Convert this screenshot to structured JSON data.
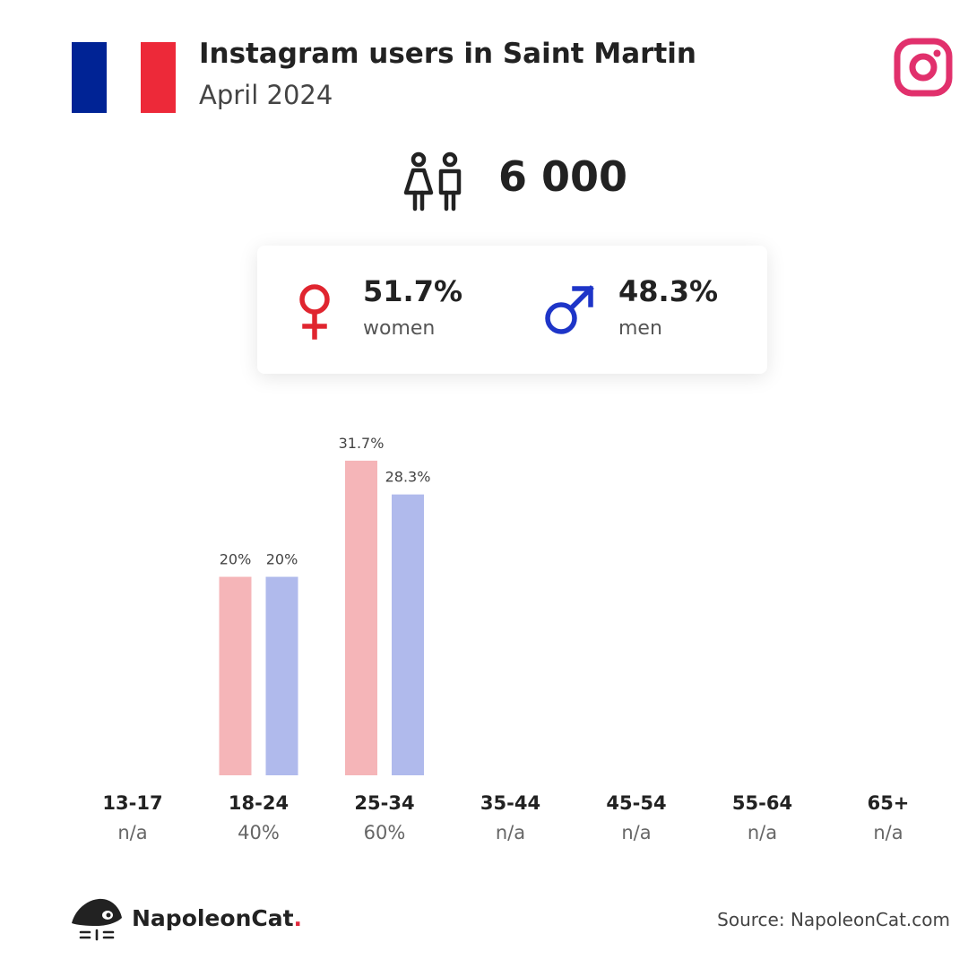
{
  "header": {
    "title": "Instagram users in Saint Martin",
    "subtitle": "April 2024",
    "flag_colors": [
      "#002395",
      "#ffffff",
      "#ed2939"
    ],
    "platform_icon": "instagram-icon",
    "platform_color": "#e1306c"
  },
  "total": {
    "icon": "users-icon",
    "value": "6 000"
  },
  "gender": {
    "women": {
      "icon": "female-symbol-icon",
      "percent": "51.7%",
      "label": "women",
      "color": "#e0252f"
    },
    "men": {
      "icon": "male-symbol-icon",
      "percent": "48.3%",
      "label": "men",
      "color": "#1e35c8"
    }
  },
  "chart_data": {
    "type": "bar",
    "categories": [
      "13-17",
      "18-24",
      "25-34",
      "35-44",
      "45-54",
      "55-64",
      "65+"
    ],
    "category_totals": [
      "n/a",
      "40%",
      "60%",
      "n/a",
      "n/a",
      "n/a",
      "n/a"
    ],
    "series": [
      {
        "name": "women",
        "color": "#f5b5b8",
        "values": [
          null,
          20,
          31.7,
          null,
          null,
          null,
          null
        ],
        "labels": [
          "",
          "20%",
          "31.7%",
          "",
          "",
          "",
          ""
        ]
      },
      {
        "name": "men",
        "color": "#b0baec",
        "values": [
          null,
          20,
          28.3,
          null,
          null,
          null,
          null
        ],
        "labels": [
          "",
          "20%",
          "28.3%",
          "",
          "",
          "",
          ""
        ]
      }
    ],
    "ylim": [
      0,
      31.7
    ],
    "grid": false,
    "legend": "none"
  },
  "footer": {
    "brand_name": "NapoleonCat",
    "brand_dot": ".",
    "brand_icon": "napoleoncat-logo-icon",
    "source": "Source: NapoleonCat.com"
  }
}
